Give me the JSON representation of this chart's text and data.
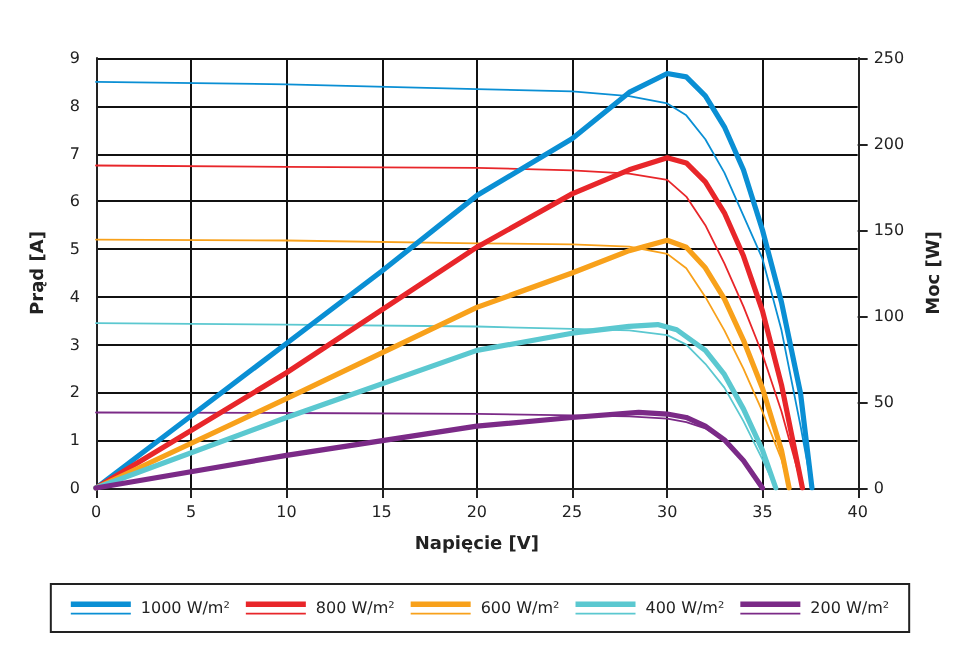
{
  "chart_data": {
    "type": "line",
    "xlabel": "Napięcie [V]",
    "ylabel": "Prąd [A]",
    "y2label": "Moc [W]",
    "xlim": [
      0,
      40
    ],
    "xticks": [
      0,
      5,
      10,
      15,
      20,
      25,
      30,
      35,
      40
    ],
    "ylim": [
      0,
      9
    ],
    "yticks": [
      0,
      1,
      2,
      3,
      4,
      5,
      6,
      7,
      8,
      9
    ],
    "y2lim": [
      0,
      250
    ],
    "y2ticks": [
      0,
      50,
      100,
      150,
      200,
      250
    ],
    "grid": true,
    "legend": "bottom",
    "marker": "none",
    "line_style": "solid",
    "series": [
      {
        "name": "1000 W/m²",
        "color": "#0a8fd4",
        "axis": "y2",
        "x": [
          0,
          5,
          10,
          15,
          20,
          25,
          28,
          30,
          31,
          32,
          33,
          34,
          35,
          36,
          37,
          37.6
        ],
        "values": [
          0,
          42,
          84,
          126,
          170,
          203,
          230,
          241,
          239,
          228,
          210,
          185,
          150,
          108,
          55,
          0
        ]
      },
      {
        "color": "#0a8fd4",
        "axis": "y",
        "x": [
          0,
          10,
          20,
          25,
          28,
          30,
          31,
          32,
          33,
          34,
          35,
          36,
          37,
          37.6
        ],
        "values": [
          8.5,
          8.45,
          8.35,
          8.3,
          8.2,
          8.05,
          7.8,
          7.3,
          6.6,
          5.7,
          4.8,
          3.3,
          1.3,
          0
        ]
      },
      {
        "name": "800 W/m²",
        "color": "#e8262a",
        "axis": "y2",
        "x": [
          0,
          10,
          20,
          25,
          28,
          30,
          31,
          32,
          33,
          34,
          35,
          36,
          37.1
        ],
        "values": [
          0,
          67,
          140,
          171,
          185,
          192,
          189,
          178,
          160,
          135,
          103,
          60,
          0
        ]
      },
      {
        "color": "#e8262a",
        "axis": "y",
        "x": [
          0,
          10,
          20,
          25,
          28,
          30,
          31,
          32,
          33,
          34,
          35,
          36,
          37.1
        ],
        "values": [
          6.75,
          6.72,
          6.7,
          6.65,
          6.58,
          6.45,
          6.1,
          5.5,
          4.7,
          3.8,
          2.8,
          1.6,
          0
        ]
      },
      {
        "name": "600 W/m²",
        "color": "#f8a11b",
        "axis": "y2",
        "x": [
          0,
          10,
          20,
          25,
          28,
          30,
          31,
          32,
          33,
          34,
          35,
          36,
          36.4
        ],
        "values": [
          0,
          52,
          105,
          125,
          138,
          144,
          140,
          128,
          110,
          86,
          58,
          22,
          0
        ]
      },
      {
        "color": "#f8a11b",
        "axis": "y",
        "x": [
          0,
          10,
          20,
          25,
          28,
          30,
          31,
          32,
          33,
          34,
          35,
          36,
          36.4
        ],
        "values": [
          5.2,
          5.18,
          5.12,
          5.1,
          5.05,
          4.9,
          4.6,
          4,
          3.3,
          2.5,
          1.6,
          0.6,
          0
        ]
      },
      {
        "name": "400 W/m²",
        "color": "#5bc8d0",
        "axis": "y2",
        "x": [
          0,
          10,
          20,
          25,
          28,
          29.5,
          30.5,
          32,
          33,
          34,
          35,
          35.7
        ],
        "values": [
          0,
          41,
          80,
          90,
          94,
          95,
          92,
          80,
          66,
          46,
          22,
          0
        ]
      },
      {
        "color": "#5bc8d0",
        "axis": "y",
        "x": [
          0,
          10,
          20,
          25,
          28,
          30,
          31,
          32,
          33,
          34,
          35,
          35.7
        ],
        "values": [
          3.45,
          3.42,
          3.38,
          3.33,
          3.3,
          3.2,
          3,
          2.6,
          2.1,
          1.4,
          0.6,
          0
        ]
      },
      {
        "name": "200 W/m²",
        "color": "#7b2a87",
        "axis": "y2",
        "x": [
          0,
          10,
          20,
          25,
          28.5,
          30,
          31,
          32,
          33,
          34,
          35
        ],
        "values": [
          0,
          19,
          36,
          41,
          44,
          43,
          41,
          36,
          28,
          16,
          0
        ]
      },
      {
        "color": "#7b2a87",
        "axis": "y",
        "x": [
          0,
          10,
          20,
          25,
          28,
          30,
          31,
          32,
          33,
          34,
          35
        ],
        "values": [
          1.58,
          1.57,
          1.55,
          1.52,
          1.5,
          1.45,
          1.38,
          1.25,
          1,
          0.55,
          0
        ]
      }
    ]
  }
}
